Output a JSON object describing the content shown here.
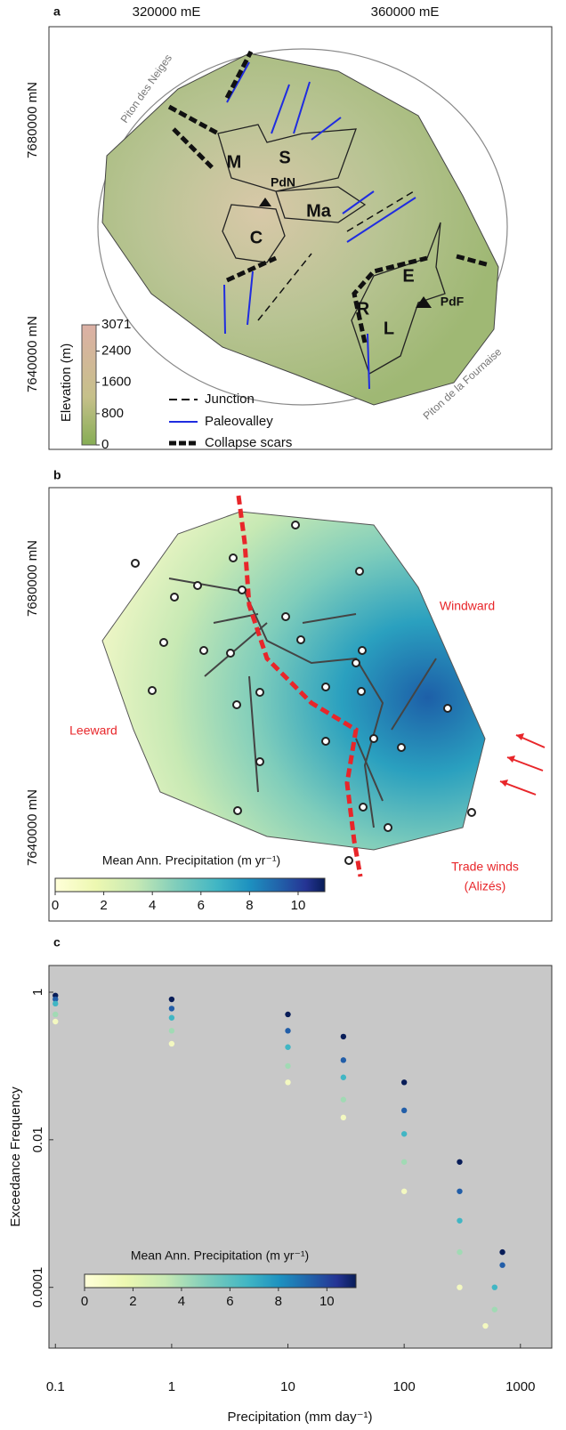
{
  "panel_a": {
    "label": "a",
    "x_ticks": [
      "320000 mE",
      "360000 mE"
    ],
    "y_ticks": [
      "7680000 mN",
      "7640000 mN"
    ],
    "volcanoes": [
      "Piton des Neiges",
      "Piton de la Fournaise"
    ],
    "map_labels": [
      "M",
      "S",
      "PdN",
      "Ma",
      "C",
      "E",
      "PdF",
      "R",
      "L"
    ],
    "elevation_legend": {
      "title": "Elevation (m)",
      "ticks": [
        0,
        800,
        1600,
        2400,
        3071
      ],
      "lim": [
        0,
        3071
      ]
    },
    "legend": [
      "Junction",
      "Paleovalley",
      "Collapse scars"
    ]
  },
  "panel_b": {
    "label": "b",
    "y_ticks": [
      "7680000 mN",
      "7640000 mN"
    ],
    "annotations": [
      "Windward",
      "Leeward"
    ],
    "trade_winds": [
      "Trade winds",
      "(Alizés)"
    ],
    "colorbar": {
      "title": "Mean Ann. Precipitation (m yr⁻¹)",
      "ticks": [
        0,
        2,
        4,
        6,
        8,
        10
      ],
      "lim": [
        0,
        11.1
      ]
    }
  },
  "chart_data": {
    "type": "scatter",
    "panel_label": "c",
    "x_label": "Precipitation (mm day⁻¹)",
    "y_label": "Exceedance Frequency",
    "log_x": true,
    "log_y": true,
    "xlim": [
      0.088,
      1860
    ],
    "ylim": [
      1.5e-05,
      2.3
    ],
    "xticks": [
      0.1,
      1,
      10,
      100,
      1000
    ],
    "yticks": [
      1,
      0.01,
      0.0001
    ],
    "series": [
      {
        "color": "#081d58",
        "x": [
          0.1,
          1,
          10,
          30,
          100,
          300,
          700
        ],
        "values": [
          0.9,
          0.8,
          0.5,
          0.25,
          0.06,
          0.005,
          0.0003
        ]
      },
      {
        "color": "#225ea8",
        "x": [
          0.1,
          1,
          10,
          30,
          100,
          300,
          700
        ],
        "values": [
          0.8,
          0.6,
          0.3,
          0.12,
          0.025,
          0.002,
          0.0002
        ]
      },
      {
        "color": "#41b6c4",
        "x": [
          0.1,
          1,
          10,
          30,
          100,
          300,
          600
        ],
        "values": [
          0.7,
          0.45,
          0.18,
          0.07,
          0.012,
          0.0008,
          0.0001
        ]
      },
      {
        "color": "#a1dab4",
        "x": [
          0.1,
          1,
          10,
          30,
          100,
          300,
          600
        ],
        "values": [
          0.5,
          0.3,
          0.1,
          0.035,
          0.005,
          0.0003,
          5e-05
        ]
      },
      {
        "color": "#f3f8c0",
        "x": [
          0.1,
          1,
          10,
          30,
          100,
          300,
          500
        ],
        "values": [
          0.4,
          0.2,
          0.06,
          0.02,
          0.002,
          0.0001,
          3e-05
        ]
      }
    ],
    "colorbar": {
      "title": "Mean Ann. Precipitation (m yr⁻¹)",
      "ticks": [
        0,
        2,
        4,
        6,
        8,
        10
      ],
      "lim": [
        0,
        11.2
      ]
    }
  }
}
